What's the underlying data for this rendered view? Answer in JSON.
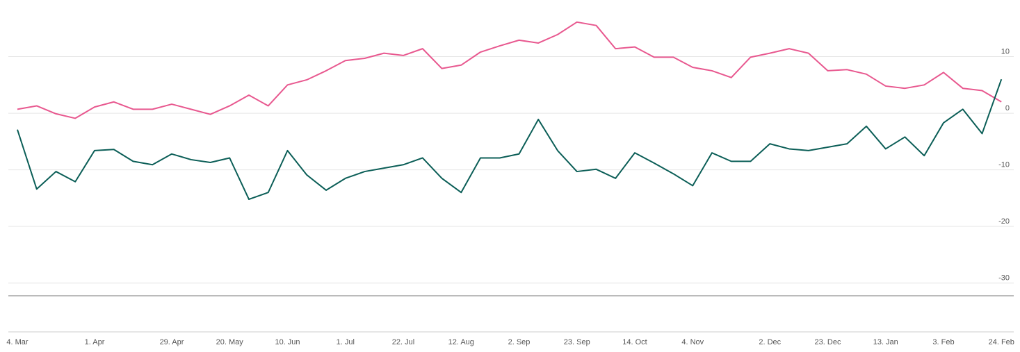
{
  "chart_data": {
    "type": "line",
    "categories": [
      "4. Mar",
      null,
      null,
      null,
      "1. Apr",
      null,
      null,
      null,
      "29. Apr",
      null,
      null,
      "20. May",
      null,
      null,
      "10. Jun",
      null,
      null,
      "1. Jul",
      null,
      null,
      "22. Jul",
      null,
      null,
      "12. Aug",
      null,
      null,
      "2. Sep",
      null,
      null,
      "23. Sep",
      null,
      null,
      "14. Oct",
      null,
      null,
      "4. Nov",
      null,
      null,
      null,
      "2. Dec",
      null,
      null,
      "23. Dec",
      null,
      null,
      "13. Jan",
      null,
      null,
      "3. Feb",
      null,
      null,
      "24. Feb"
    ],
    "series": [
      {
        "color": "#e8588f",
        "values": [
          0.7,
          1.3,
          -0.1,
          -0.9,
          1.1,
          2.0,
          0.7,
          0.7,
          1.6,
          0.7,
          -0.2,
          1.3,
          3.2,
          1.3,
          5.0,
          5.9,
          7.5,
          9.3,
          9.7,
          10.6,
          10.2,
          11.4,
          7.9,
          8.5,
          10.8,
          11.9,
          12.9,
          12.4,
          13.9,
          16.1,
          15.5,
          11.4,
          11.7,
          9.9,
          9.9,
          8.1,
          7.5,
          6.3,
          9.9,
          10.6,
          11.4,
          10.6,
          7.5,
          7.7,
          6.9,
          4.8,
          4.4,
          5.0,
          7.2,
          4.4,
          4.0,
          2.0
        ]
      },
      {
        "color": "#0b5e57",
        "values": [
          -2.9,
          -13.4,
          -10.3,
          -12.1,
          -6.6,
          -6.4,
          -8.5,
          -9.1,
          -7.2,
          -8.2,
          -8.7,
          -7.9,
          -15.2,
          -14.0,
          -6.6,
          -10.9,
          -13.6,
          -11.5,
          -10.3,
          -9.7,
          -9.1,
          -7.9,
          -11.5,
          -14.0,
          -7.9,
          -7.9,
          -7.2,
          -1.1,
          -6.6,
          -10.3,
          -9.9,
          -11.5,
          -7.0,
          -8.8,
          -10.7,
          -12.8,
          -7.0,
          -8.5,
          -8.5,
          -5.4,
          -6.3,
          -6.6,
          -6.0,
          -5.4,
          -2.3,
          -6.3,
          -4.2,
          -7.5,
          -1.7,
          0.7,
          -3.6,
          6.0
        ]
      }
    ],
    "ylim": [
      -32,
      20
    ],
    "yticks": [
      -30,
      -20,
      -10,
      0,
      10
    ],
    "grid": true
  }
}
